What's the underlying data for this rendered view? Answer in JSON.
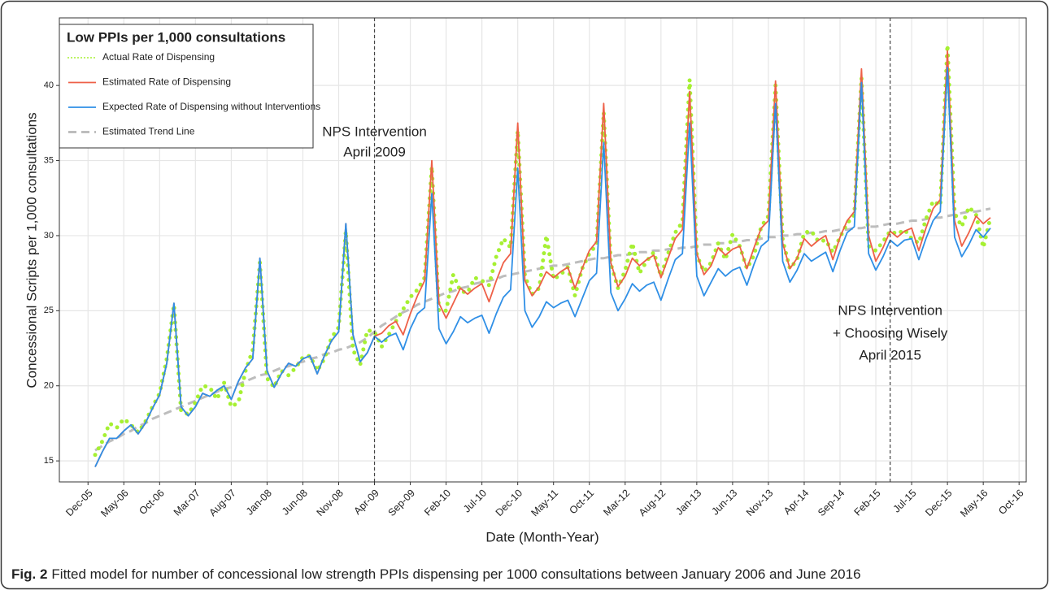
{
  "chart_data": {
    "type": "line",
    "legend_title": "Low PPIs per 1,000 consultations",
    "ylabel": "Concessional Scripts per 1,000 consultations",
    "xlabel": "Date (Month-Year)",
    "caption": {
      "label": "Fig. 2",
      "text": "Fitted model for number of concessional low strength PPIs dispensing per 1000 consultations between January 2006 and June 2016"
    },
    "annotations": [
      {
        "x": "Apr-09",
        "lines": [
          "NPS Intervention",
          "April 2009"
        ]
      },
      {
        "x": "Apr-15",
        "lines": [
          "NPS Intervention",
          "+ Choosing Wisely",
          "April 2015"
        ]
      }
    ],
    "vlines": [
      "Apr-09",
      "Apr-15"
    ],
    "grid": true,
    "legend": "upper left",
    "xlim": [
      "Aug-05",
      "Nov-16"
    ],
    "xticks": [
      "Dec-05",
      "May-06",
      "Oct-06",
      "Mar-07",
      "Aug-07",
      "Jan-08",
      "Jun-08",
      "Nov-08",
      "Apr-09",
      "Sep-09",
      "Feb-10",
      "Jul-10",
      "Dec-10",
      "May-11",
      "Oct-11",
      "Mar-12",
      "Aug-12",
      "Jan-13",
      "Jun-13",
      "Nov-13",
      "Apr-14",
      "Sep-14",
      "Feb-15",
      "Jul-15",
      "Dec-15",
      "May-16",
      "Oct-16"
    ],
    "ylim": [
      13.6,
      44.5
    ],
    "yticks": [
      15,
      20,
      25,
      30,
      35,
      40
    ],
    "x": [
      "Jan-06",
      "Feb-06",
      "Mar-06",
      "Apr-06",
      "May-06",
      "Jun-06",
      "Jul-06",
      "Aug-06",
      "Sep-06",
      "Oct-06",
      "Nov-06",
      "Dec-06",
      "Jan-07",
      "Feb-07",
      "Mar-07",
      "Apr-07",
      "May-07",
      "Jun-07",
      "Jul-07",
      "Aug-07",
      "Sep-07",
      "Oct-07",
      "Nov-07",
      "Dec-07",
      "Jan-08",
      "Feb-08",
      "Mar-08",
      "Apr-08",
      "May-08",
      "Jun-08",
      "Jul-08",
      "Aug-08",
      "Sep-08",
      "Oct-08",
      "Nov-08",
      "Dec-08",
      "Jan-09",
      "Feb-09",
      "Mar-09",
      "Apr-09",
      "May-09",
      "Jun-09",
      "Jul-09",
      "Aug-09",
      "Sep-09",
      "Oct-09",
      "Nov-09",
      "Dec-09",
      "Jan-10",
      "Feb-10",
      "Mar-10",
      "Apr-10",
      "May-10",
      "Jun-10",
      "Jul-10",
      "Aug-10",
      "Sep-10",
      "Oct-10",
      "Nov-10",
      "Dec-10",
      "Jan-11",
      "Feb-11",
      "Mar-11",
      "Apr-11",
      "May-11",
      "Jun-11",
      "Jul-11",
      "Aug-11",
      "Sep-11",
      "Oct-11",
      "Nov-11",
      "Dec-11",
      "Jan-12",
      "Feb-12",
      "Mar-12",
      "Apr-12",
      "May-12",
      "Jun-12",
      "Jul-12",
      "Aug-12",
      "Sep-12",
      "Oct-12",
      "Nov-12",
      "Dec-12",
      "Jan-13",
      "Feb-13",
      "Mar-13",
      "Apr-13",
      "May-13",
      "Jun-13",
      "Jul-13",
      "Aug-13",
      "Sep-13",
      "Oct-13",
      "Nov-13",
      "Dec-13",
      "Jan-14",
      "Feb-14",
      "Mar-14",
      "Apr-14",
      "May-14",
      "Jun-14",
      "Jul-14",
      "Aug-14",
      "Sep-14",
      "Oct-14",
      "Nov-14",
      "Dec-14",
      "Jan-15",
      "Feb-15",
      "Mar-15",
      "Apr-15",
      "May-15",
      "Jun-15",
      "Jul-15",
      "Aug-15",
      "Sep-15",
      "Oct-15",
      "Nov-15",
      "Dec-15",
      "Jan-16",
      "Feb-16",
      "Mar-16",
      "Apr-16",
      "May-16",
      "Jun-16"
    ],
    "series": [
      {
        "name": "Actual Rate of Dispensing",
        "color": "#a6f032",
        "style": "dotted",
        "values": [
          15.4,
          16.3,
          17.5,
          17.2,
          17.8,
          17.4,
          16.9,
          17.6,
          18.6,
          19.5,
          21.8,
          25.4,
          18.3,
          18.1,
          18.9,
          20.0,
          19.9,
          19.1,
          20.2,
          18.6,
          18.9,
          21.0,
          22.4,
          28.2,
          20.5,
          19.9,
          21.0,
          20.7,
          21.2,
          21.9,
          22.0,
          21.0,
          21.8,
          23.2,
          23.9,
          30.3,
          22.4,
          21.4,
          23.7,
          23.6,
          22.6,
          23.4,
          24.3,
          25.1,
          25.9,
          26.4,
          27.2,
          34.6,
          25.0,
          25.0,
          27.4,
          26.3,
          26.2,
          27.2,
          27.0,
          26.7,
          28.6,
          29.8,
          29.2,
          37.0,
          27.3,
          26.1,
          26.5,
          30.0,
          27.1,
          27.4,
          27.9,
          26.0,
          27.8,
          28.8,
          29.4,
          38.2,
          28.1,
          26.5,
          27.7,
          29.5,
          27.5,
          28.3,
          28.9,
          27.3,
          28.8,
          30.2,
          30.9,
          40.4,
          28.7,
          27.6,
          28.2,
          29.5,
          28.4,
          30.1,
          29.3,
          27.8,
          28.7,
          30.6,
          31.3,
          40.0,
          29.7,
          27.8,
          28.4,
          30.2,
          30.3,
          29.6,
          29.7,
          28.9,
          29.9,
          30.8,
          31.4,
          40.5,
          29.3,
          29.0,
          29.6,
          30.3,
          30.1,
          30.4,
          29.8,
          29.5,
          31.1,
          32.3,
          32.0,
          42.7,
          31.5,
          30.6,
          31.9,
          31.4,
          29.2,
          31.2
        ]
      },
      {
        "name": "Estimated Rate of Dispensing",
        "color": "#ee6048",
        "style": "solid",
        "values": [
          14.6,
          15.6,
          16.5,
          16.5,
          17.0,
          17.4,
          16.8,
          17.5,
          18.5,
          19.4,
          21.5,
          25.5,
          18.6,
          18.0,
          18.6,
          19.5,
          19.3,
          19.7,
          20.0,
          19.1,
          20.3,
          21.2,
          21.8,
          28.5,
          21.0,
          19.9,
          20.8,
          21.5,
          21.3,
          21.8,
          22.0,
          20.8,
          22.0,
          23.0,
          23.6,
          30.8,
          23.4,
          21.6,
          22.2,
          23.3,
          23.5,
          24.0,
          24.3,
          23.4,
          24.8,
          26.0,
          27.0,
          35.0,
          25.5,
          24.5,
          25.5,
          26.5,
          26.1,
          26.5,
          26.8,
          25.6,
          27.0,
          28.2,
          28.8,
          37.5,
          27.0,
          26.0,
          26.6,
          27.6,
          27.2,
          27.6,
          27.9,
          26.5,
          27.8,
          29.0,
          29.6,
          38.8,
          28.2,
          26.6,
          27.3,
          28.5,
          28.0,
          28.4,
          28.7,
          27.2,
          28.5,
          29.8,
          30.4,
          39.6,
          28.8,
          27.4,
          28.0,
          29.2,
          28.7,
          29.1,
          29.3,
          27.8,
          29.2,
          30.5,
          31.0,
          40.3,
          29.5,
          27.8,
          28.5,
          29.8,
          29.3,
          29.7,
          30.0,
          28.4,
          29.9,
          31.0,
          31.6,
          41.1,
          30.0,
          28.3,
          29.2,
          30.3,
          29.9,
          30.3,
          30.5,
          29.0,
          30.5,
          31.8,
          32.4,
          42.3,
          31.0,
          29.3,
          30.2,
          31.3,
          30.8,
          31.2
        ]
      },
      {
        "name": "Expected Rate of Dispensing without Interventions",
        "color": "#2f8fe6",
        "style": "solid",
        "values": [
          14.6,
          15.6,
          16.5,
          16.5,
          17.0,
          17.4,
          16.8,
          17.5,
          18.5,
          19.4,
          21.5,
          25.5,
          18.6,
          18.0,
          18.6,
          19.5,
          19.3,
          19.7,
          20.0,
          19.1,
          20.3,
          21.2,
          21.8,
          28.5,
          21.0,
          19.9,
          20.8,
          21.5,
          21.3,
          21.8,
          22.0,
          20.8,
          22.0,
          23.0,
          23.6,
          30.8,
          23.4,
          21.6,
          22.2,
          23.3,
          22.9,
          23.3,
          23.5,
          22.4,
          23.8,
          24.8,
          25.2,
          32.8,
          23.8,
          22.8,
          23.6,
          24.6,
          24.2,
          24.5,
          24.7,
          23.5,
          24.8,
          25.9,
          26.4,
          34.5,
          25.0,
          23.9,
          24.6,
          25.6,
          25.2,
          25.5,
          25.7,
          24.6,
          25.8,
          27.0,
          27.5,
          36.2,
          26.2,
          25.0,
          25.8,
          26.8,
          26.3,
          26.7,
          26.9,
          25.7,
          27.1,
          28.4,
          28.8,
          37.5,
          27.3,
          26.0,
          26.9,
          27.8,
          27.3,
          27.7,
          27.9,
          26.7,
          28.1,
          29.3,
          29.7,
          38.8,
          28.3,
          26.9,
          27.7,
          28.8,
          28.3,
          28.6,
          28.9,
          27.6,
          29.0,
          30.2,
          30.6,
          40.2,
          28.8,
          27.7,
          28.6,
          29.7,
          29.3,
          29.7,
          29.8,
          28.4,
          29.8,
          31.0,
          31.6,
          41.2,
          29.9,
          28.6,
          29.4,
          30.4,
          29.9,
          30.5
        ]
      },
      {
        "name": "Estimated Trend Line",
        "color": "#bdbdbd",
        "style": "dashed",
        "values": [
          15.7,
          16.0,
          16.3,
          16.5,
          16.8,
          17.0,
          17.3,
          17.5,
          17.8,
          18.0,
          18.2,
          18.4,
          18.6,
          18.8,
          19.0,
          19.2,
          19.4,
          19.6,
          19.8,
          19.9,
          20.1,
          20.3,
          20.5,
          20.7,
          20.8,
          21.0,
          21.2,
          21.3,
          21.5,
          21.6,
          21.8,
          21.9,
          22.1,
          22.2,
          22.4,
          22.5,
          22.7,
          22.9,
          23.2,
          23.6,
          24.0,
          24.3,
          24.6,
          24.9,
          25.1,
          25.4,
          25.6,
          25.8,
          26.0,
          26.2,
          26.3,
          26.5,
          26.6,
          26.8,
          26.9,
          27.0,
          27.1,
          27.3,
          27.4,
          27.5,
          27.6,
          27.7,
          27.8,
          27.9,
          28.0,
          28.0,
          28.1,
          28.2,
          28.3,
          28.4,
          28.5,
          28.5,
          28.6,
          28.7,
          28.7,
          28.8,
          28.9,
          28.9,
          29.0,
          29.0,
          29.1,
          29.1,
          29.2,
          29.2,
          29.3,
          29.4,
          29.4,
          29.5,
          29.5,
          29.6,
          29.6,
          29.7,
          29.7,
          29.8,
          29.9,
          29.9,
          30.0,
          30.0,
          30.1,
          30.1,
          30.2,
          30.2,
          30.3,
          30.3,
          30.4,
          30.4,
          30.5,
          30.5,
          30.6,
          30.6,
          30.7,
          30.8,
          30.8,
          30.9,
          31.0,
          31.0,
          31.1,
          31.2,
          31.2,
          31.3,
          31.4,
          31.5,
          31.6,
          31.6,
          31.7,
          31.8
        ]
      }
    ]
  }
}
